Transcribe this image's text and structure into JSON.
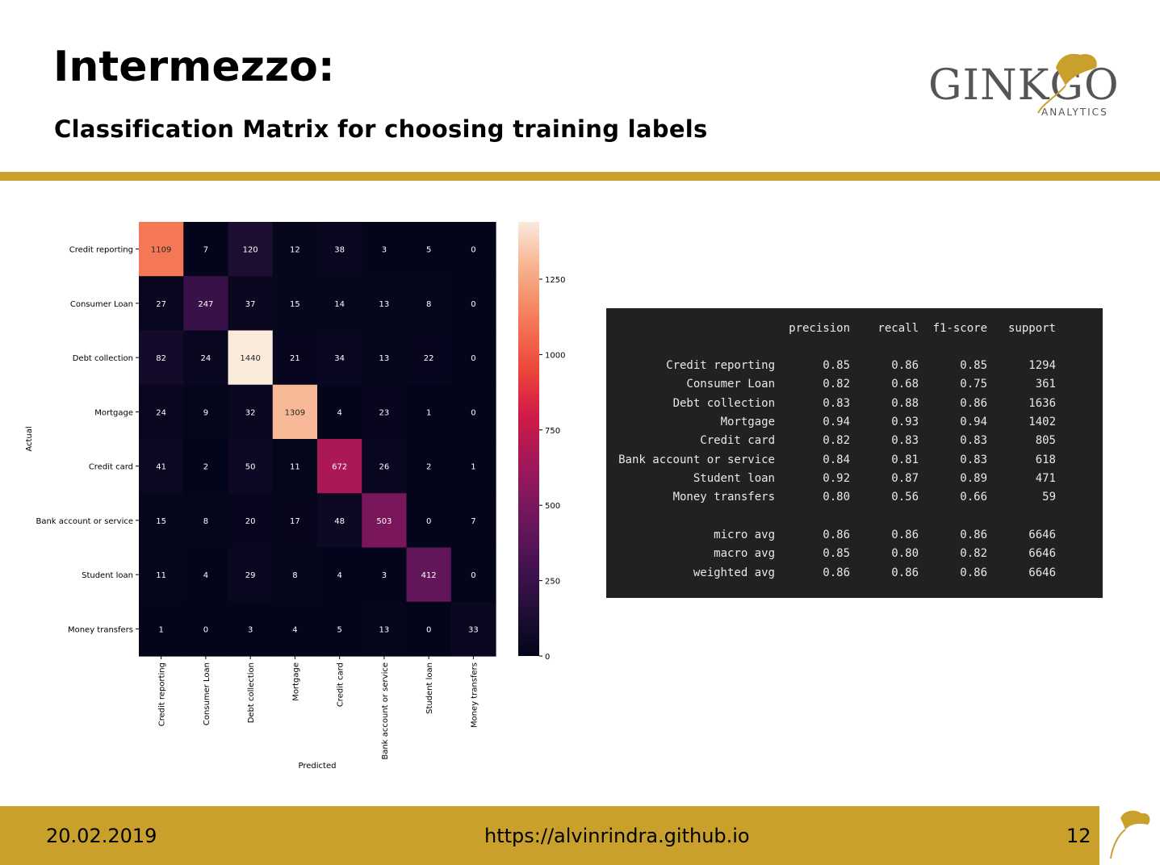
{
  "slide": {
    "title": "Intermezzo:",
    "subtitle": "Classification Matrix for choosing training labels"
  },
  "logo": {
    "name": "GINKGO",
    "sub": "ANALYTICS",
    "icon": "ginkgo-leaf-icon"
  },
  "footer": {
    "date": "20.02.2019",
    "url": "https://alvinrindra.github.io",
    "page": "12"
  },
  "colors": {
    "accent": "#c9a02b",
    "report_bg": "#212121"
  },
  "chart_data": [
    {
      "type": "heatmap",
      "colormap": "rocket",
      "xlabel": "Predicted",
      "ylabel": "Actual",
      "x_categories": [
        "Credit reporting",
        "Consumer Loan",
        "Debt collection",
        "Mortgage",
        "Credit card",
        "Bank account or service",
        "Student loan",
        "Money transfers"
      ],
      "y_categories": [
        "Credit reporting",
        "Consumer Loan",
        "Debt collection",
        "Mortgage",
        "Credit card",
        "Bank account or service",
        "Student loan",
        "Money transfers"
      ],
      "values": [
        [
          1109,
          7,
          120,
          12,
          38,
          3,
          5,
          0
        ],
        [
          27,
          247,
          37,
          15,
          14,
          13,
          8,
          0
        ],
        [
          82,
          24,
          1440,
          21,
          34,
          13,
          22,
          0
        ],
        [
          24,
          9,
          32,
          1309,
          4,
          23,
          1,
          0
        ],
        [
          41,
          2,
          50,
          11,
          672,
          26,
          2,
          1
        ],
        [
          15,
          8,
          20,
          17,
          48,
          503,
          0,
          7
        ],
        [
          11,
          4,
          29,
          8,
          4,
          3,
          412,
          0
        ],
        [
          1,
          0,
          3,
          4,
          5,
          13,
          0,
          33
        ]
      ],
      "colorbar": {
        "range": [
          0,
          1440
        ],
        "ticks": [
          0,
          250,
          500,
          750,
          1000,
          1250
        ]
      }
    },
    {
      "type": "table",
      "columns": [
        "precision",
        "recall",
        "f1-score",
        "support"
      ],
      "rows": [
        {
          "label": "Credit reporting",
          "values": [
            "0.85",
            "0.86",
            "0.85",
            "1294"
          ]
        },
        {
          "label": "Consumer Loan",
          "values": [
            "0.82",
            "0.68",
            "0.75",
            "361"
          ]
        },
        {
          "label": "Debt collection",
          "values": [
            "0.83",
            "0.88",
            "0.86",
            "1636"
          ]
        },
        {
          "label": "Mortgage",
          "values": [
            "0.94",
            "0.93",
            "0.94",
            "1402"
          ]
        },
        {
          "label": "Credit card",
          "values": [
            "0.82",
            "0.83",
            "0.83",
            "805"
          ]
        },
        {
          "label": "Bank account or service",
          "values": [
            "0.84",
            "0.81",
            "0.83",
            "618"
          ]
        },
        {
          "label": "Student loan",
          "values": [
            "0.92",
            "0.87",
            "0.89",
            "471"
          ]
        },
        {
          "label": "Money transfers",
          "values": [
            "0.80",
            "0.56",
            "0.66",
            "59"
          ]
        }
      ],
      "averages": [
        {
          "label": "micro avg",
          "values": [
            "0.86",
            "0.86",
            "0.86",
            "6646"
          ]
        },
        {
          "label": "macro avg",
          "values": [
            "0.85",
            "0.80",
            "0.82",
            "6646"
          ]
        },
        {
          "label": "weighted avg",
          "values": [
            "0.86",
            "0.86",
            "0.86",
            "6646"
          ]
        }
      ]
    }
  ]
}
